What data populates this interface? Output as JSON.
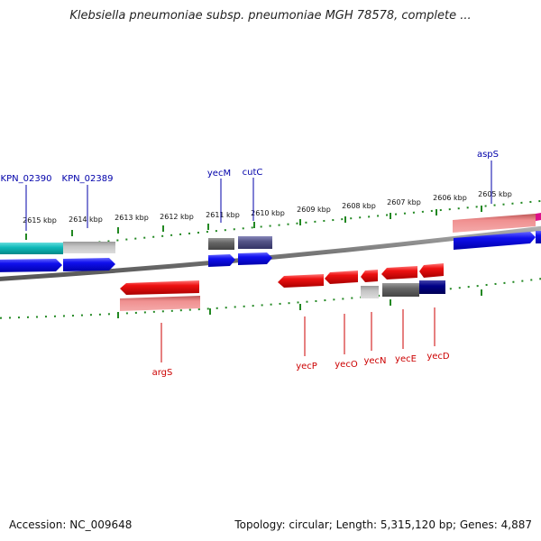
{
  "title": "Klebsiella pneumoniae subsp. pneumoniae MGH 78578, complete ...",
  "footer": {
    "accession": "Accession: NC_009648",
    "summary": "Topology: circular; Length: 5,315,120 bp; Genes: 4,887"
  },
  "colors": {
    "red": "#ee1111",
    "pink": "#ee8888",
    "blue": "#1010ee",
    "teal": "#11bbbb",
    "gray": "#bbbbbb",
    "darkgray": "#666666",
    "slate": "#555588",
    "navy": "#000088",
    "magenta": "#dd1188",
    "tick": "#228822",
    "backbone": "#808080",
    "label_blue": "#0000aa",
    "label_red": "#cc0000"
  },
  "scale": {
    "unit": "kbp",
    "ticks": [
      2615,
      2614,
      2613,
      2612,
      2611,
      2610,
      2609,
      2608,
      2607,
      2606,
      2605
    ]
  },
  "labels": {
    "top": [
      {
        "id": "KPN_02390",
        "text": "KPN_02390"
      },
      {
        "id": "KPN_02389",
        "text": "KPN_02389"
      },
      {
        "id": "yecM",
        "text": "yecM"
      },
      {
        "id": "cutC",
        "text": "cutC"
      },
      {
        "id": "aspS",
        "text": "aspS"
      }
    ],
    "bottom": [
      {
        "id": "argS",
        "text": "argS"
      },
      {
        "id": "yecP",
        "text": "yecP"
      },
      {
        "id": "yecO",
        "text": "yecO"
      },
      {
        "id": "yecN",
        "text": "yecN"
      },
      {
        "id": "yecE",
        "text": "yecE"
      },
      {
        "id": "yecD",
        "text": "yecD"
      }
    ]
  }
}
